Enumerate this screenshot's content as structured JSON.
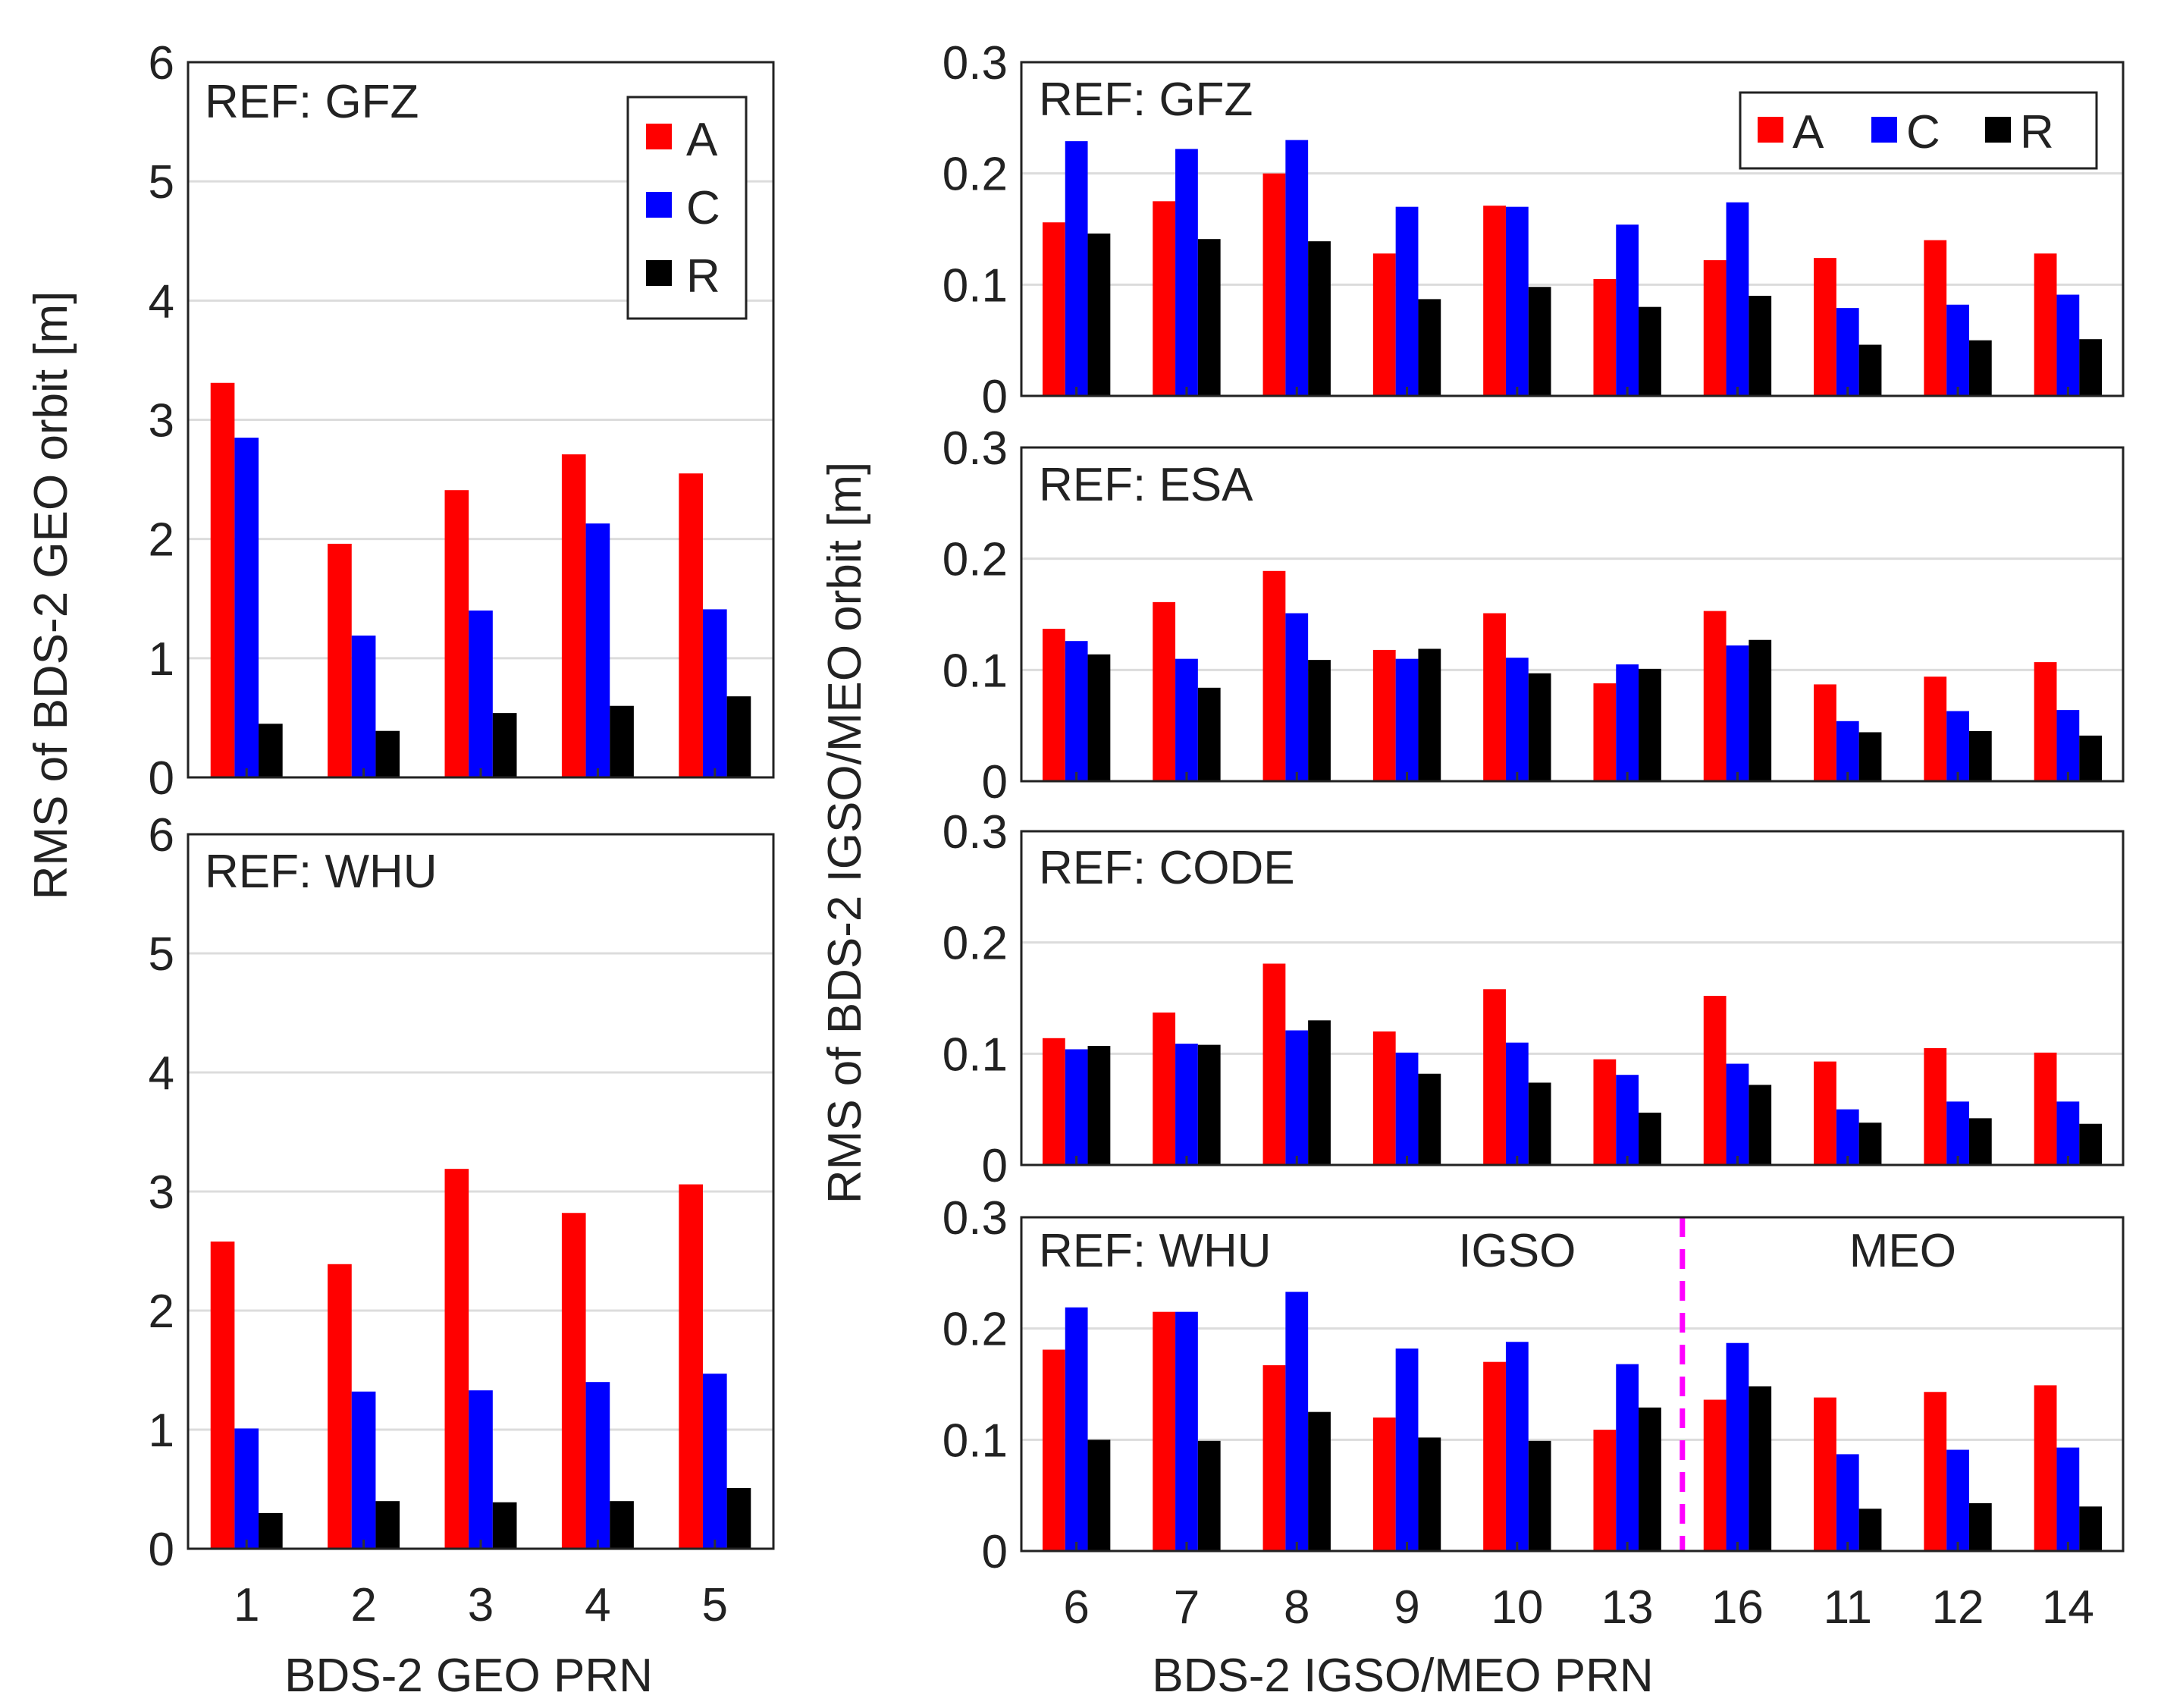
{
  "figure": {
    "left_ylabel": "RMS of BDS-2 GEO orbit [m]",
    "right_ylabel": "RMS of BDS-2 IGSO/MEO orbit [m]",
    "left_xlabel": "BDS-2 GEO PRN",
    "right_xlabel": "BDS-2 IGSO/MEO PRN"
  },
  "legend": [
    {
      "name": "A",
      "color": "#ff0000"
    },
    {
      "name": "C",
      "color": "#0000ff"
    },
    {
      "name": "R",
      "color": "#000000"
    }
  ],
  "chart_data": [
    {
      "id": "geo-gfz",
      "type": "bar",
      "panel_label": "REF: GFZ",
      "categories": [
        "1",
        "2",
        "3",
        "4",
        "5"
      ],
      "ylim": [
        0,
        6
      ],
      "yticks": [
        "0",
        "1",
        "2",
        "3",
        "4",
        "5",
        "6"
      ],
      "grid": true,
      "legend": "top-right",
      "series": [
        {
          "name": "A",
          "values": [
            3.31,
            1.96,
            2.41,
            2.71,
            2.55
          ]
        },
        {
          "name": "C",
          "values": [
            2.85,
            1.19,
            1.4,
            2.13,
            1.41
          ]
        },
        {
          "name": "R",
          "values": [
            0.45,
            0.39,
            0.54,
            0.6,
            0.68
          ]
        }
      ]
    },
    {
      "id": "geo-whu",
      "type": "bar",
      "panel_label": "REF: WHU",
      "categories": [
        "1",
        "2",
        "3",
        "4",
        "5"
      ],
      "ylim": [
        0,
        6
      ],
      "yticks": [
        "0",
        "1",
        "2",
        "3",
        "4",
        "5",
        "6"
      ],
      "grid": true,
      "series": [
        {
          "name": "A",
          "values": [
            2.58,
            2.39,
            3.19,
            2.82,
            3.06
          ]
        },
        {
          "name": "C",
          "values": [
            1.01,
            1.32,
            1.33,
            1.4,
            1.47
          ]
        },
        {
          "name": "R",
          "values": [
            0.3,
            0.4,
            0.39,
            0.4,
            0.51
          ]
        }
      ]
    },
    {
      "id": "igso-gfz",
      "type": "bar",
      "panel_label": "REF: GFZ",
      "categories": [
        "6",
        "7",
        "8",
        "9",
        "10",
        "13",
        "16",
        "11",
        "12",
        "14"
      ],
      "ylim": [
        0,
        0.3
      ],
      "yticks": [
        "0",
        "0.1",
        "0.2",
        "0.3"
      ],
      "grid": true,
      "legend": "top-right",
      "series": [
        {
          "name": "A",
          "values": [
            0.156,
            0.175,
            0.2,
            0.128,
            0.171,
            0.105,
            0.122,
            0.124,
            0.14,
            0.128
          ]
        },
        {
          "name": "C",
          "values": [
            0.229,
            0.222,
            0.23,
            0.17,
            0.17,
            0.154,
            0.174,
            0.079,
            0.082,
            0.091
          ]
        },
        {
          "name": "R",
          "values": [
            0.146,
            0.141,
            0.139,
            0.087,
            0.098,
            0.08,
            0.09,
            0.046,
            0.05,
            0.051
          ]
        }
      ]
    },
    {
      "id": "igso-esa",
      "type": "bar",
      "panel_label": "REF: ESA",
      "categories": [
        "6",
        "7",
        "8",
        "9",
        "10",
        "13",
        "16",
        "11",
        "12",
        "14"
      ],
      "ylim": [
        0,
        0.3
      ],
      "yticks": [
        "0",
        "0.1",
        "0.2",
        "0.3"
      ],
      "grid": true,
      "series": [
        {
          "name": "A",
          "values": [
            0.137,
            0.161,
            0.189,
            0.118,
            0.151,
            0.088,
            0.153,
            0.087,
            0.094,
            0.107
          ]
        },
        {
          "name": "C",
          "values": [
            0.126,
            0.11,
            0.151,
            0.11,
            0.111,
            0.105,
            0.122,
            0.054,
            0.063,
            0.064
          ]
        },
        {
          "name": "R",
          "values": [
            0.114,
            0.084,
            0.109,
            0.119,
            0.097,
            0.101,
            0.127,
            0.044,
            0.045,
            0.041
          ]
        }
      ]
    },
    {
      "id": "igso-code",
      "type": "bar",
      "panel_label": "REF: CODE",
      "categories": [
        "6",
        "7",
        "8",
        "9",
        "10",
        "13",
        "16",
        "11",
        "12",
        "14"
      ],
      "ylim": [
        0,
        0.3
      ],
      "yticks": [
        "0",
        "0.1",
        "0.2",
        "0.3"
      ],
      "grid": true,
      "series": [
        {
          "name": "A",
          "values": [
            0.114,
            0.137,
            0.181,
            0.12,
            0.158,
            0.095,
            0.152,
            0.093,
            0.105,
            0.101
          ]
        },
        {
          "name": "C",
          "values": [
            0.104,
            0.109,
            0.121,
            0.101,
            0.11,
            0.081,
            0.091,
            0.05,
            0.057,
            0.057
          ]
        },
        {
          "name": "R",
          "values": [
            0.107,
            0.108,
            0.13,
            0.082,
            0.074,
            0.047,
            0.072,
            0.038,
            0.042,
            0.037
          ]
        }
      ]
    },
    {
      "id": "igso-whu",
      "type": "bar",
      "panel_label": "REF: WHU",
      "categories": [
        "6",
        "7",
        "8",
        "9",
        "10",
        "13",
        "16",
        "11",
        "12",
        "14"
      ],
      "ylim": [
        0,
        0.3
      ],
      "yticks": [
        "0",
        "0.1",
        "0.2",
        "0.3"
      ],
      "grid": true,
      "annotations": [
        {
          "text": "IGSO",
          "x_category": 4.5
        },
        {
          "text": "MEO",
          "x_category": 8
        }
      ],
      "divider": {
        "style": "dashed",
        "color": "#ff00ff",
        "after_category": 6
      },
      "series": [
        {
          "name": "A",
          "values": [
            0.181,
            0.215,
            0.167,
            0.12,
            0.17,
            0.109,
            0.136,
            0.138,
            0.143,
            0.149
          ]
        },
        {
          "name": "C",
          "values": [
            0.219,
            0.215,
            0.233,
            0.182,
            0.188,
            0.168,
            0.187,
            0.087,
            0.091,
            0.093
          ]
        },
        {
          "name": "R",
          "values": [
            0.1,
            0.099,
            0.125,
            0.102,
            0.099,
            0.129,
            0.148,
            0.038,
            0.043,
            0.04
          ]
        }
      ]
    }
  ]
}
